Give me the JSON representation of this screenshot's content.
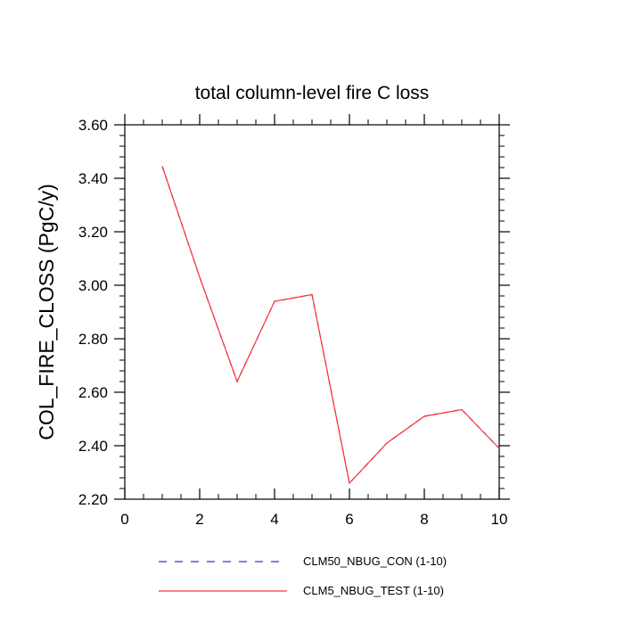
{
  "chart_data": {
    "type": "line",
    "title": "total column-level fire C loss",
    "xlabel": "",
    "ylabel": "COL_FIRE_CLOSS  (PgC/y)",
    "xlim": [
      0,
      10
    ],
    "ylim": [
      2.2,
      3.6
    ],
    "x_ticks": [
      0,
      2,
      4,
      6,
      8,
      10
    ],
    "x_tick_labels": [
      "0",
      "2",
      "4",
      "6",
      "8",
      "10"
    ],
    "y_ticks": [
      2.2,
      2.4,
      2.6,
      2.8,
      3.0,
      3.2,
      3.4,
      3.6
    ],
    "y_tick_labels": [
      "2.20",
      "2.40",
      "2.60",
      "2.80",
      "3.00",
      "3.20",
      "3.40",
      "3.60"
    ],
    "grid": false,
    "legend_position": "bottom",
    "x": [
      1,
      2,
      3,
      4,
      5,
      6,
      7,
      8,
      9,
      10
    ],
    "series": [
      {
        "name": "CLM50_NBUG_CON (1-10)",
        "color": "#3333cc",
        "dash": "dashed",
        "values": [
          3.445,
          3.03,
          2.64,
          2.94,
          2.965,
          2.26,
          2.41,
          2.51,
          2.535,
          2.39
        ]
      },
      {
        "name": "CLM5_NBUG_TEST (1-10)",
        "color": "#ff3333",
        "dash": "solid",
        "values": [
          3.445,
          3.03,
          2.64,
          2.94,
          2.965,
          2.26,
          2.41,
          2.51,
          2.535,
          2.39
        ]
      }
    ]
  }
}
